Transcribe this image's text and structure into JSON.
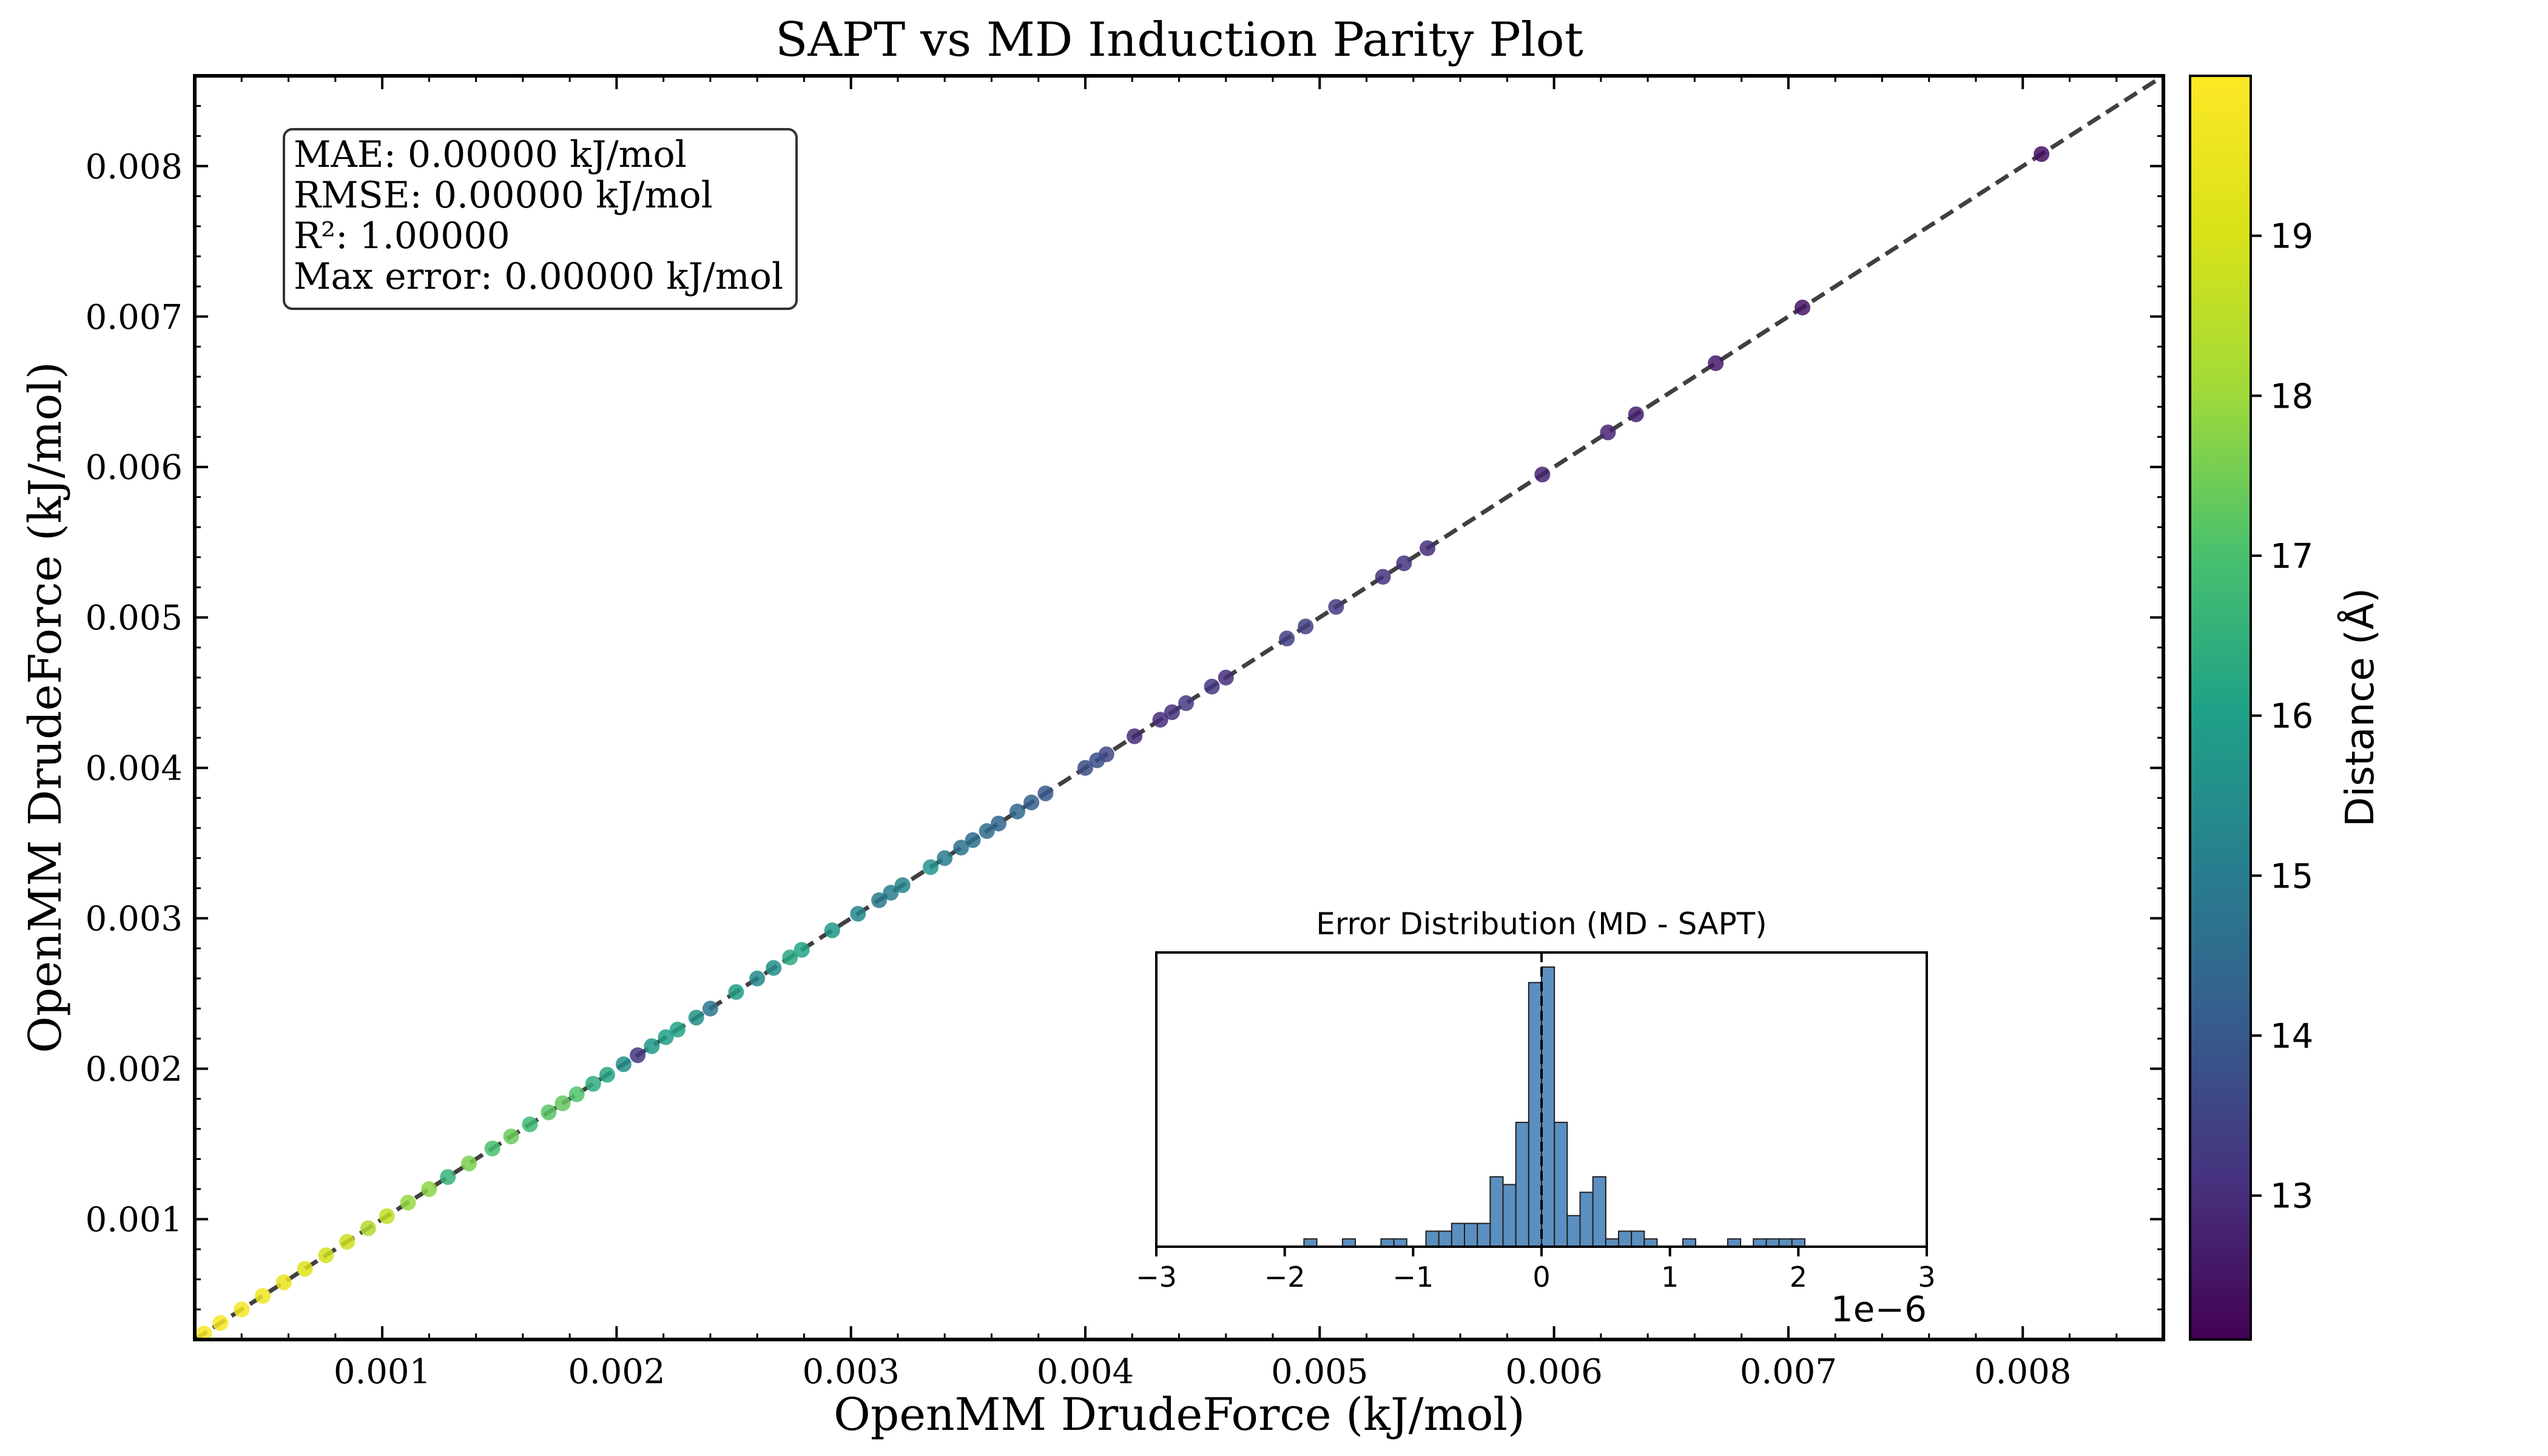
{
  "chart_data": [
    {
      "type": "scatter",
      "title": "SAPT vs MD Induction Parity Plot",
      "xlabel": "OpenMM DrudeForce (kJ/mol)",
      "ylabel": "OpenMM DrudeForce (kJ/mol)",
      "xlim": [
        0.0002,
        0.0086
      ],
      "ylim": [
        0.0002,
        0.0086
      ],
      "xticks": [
        0.001,
        0.002,
        0.003,
        0.004,
        0.005,
        0.006,
        0.007,
        0.008
      ],
      "yticks": [
        0.001,
        0.002,
        0.003,
        0.004,
        0.005,
        0.006,
        0.007,
        0.008
      ],
      "xtick_labels": [
        "0.001",
        "0.002",
        "0.003",
        "0.004",
        "0.005",
        "0.006",
        "0.007",
        "0.008"
      ],
      "ytick_labels": [
        "0.001",
        "0.002",
        "0.003",
        "0.004",
        "0.005",
        "0.006",
        "0.007",
        "0.008"
      ],
      "grid": false,
      "reference_line": "y = x (dashed)",
      "stats_box": {
        "mae": "MAE: 0.00000 kJ/mol",
        "rmse": "RMSE: 0.00000 kJ/mol",
        "r2": "R²: 1.00000",
        "max_error": "Max error: 0.00000 kJ/mol"
      },
      "colorbar": {
        "label": "Distance (Å)",
        "range": [
          12.1,
          20.0
        ],
        "ticks": [
          13,
          14,
          15,
          16,
          17,
          18,
          19
        ],
        "tick_labels": [
          "13",
          "14",
          "15",
          "16",
          "17",
          "18",
          "19"
        ],
        "colormap": "viridis"
      },
      "points": [
        {
          "x": 0.00808,
          "y": 0.00808,
          "d": 12.4
        },
        {
          "x": 0.00706,
          "y": 0.00706,
          "d": 12.5
        },
        {
          "x": 0.00669,
          "y": 0.00669,
          "d": 12.6
        },
        {
          "x": 0.00635,
          "y": 0.00635,
          "d": 12.7
        },
        {
          "x": 0.00623,
          "y": 0.00623,
          "d": 12.8
        },
        {
          "x": 0.00595,
          "y": 0.00595,
          "d": 12.8
        },
        {
          "x": 0.00546,
          "y": 0.00546,
          "d": 13.0
        },
        {
          "x": 0.00536,
          "y": 0.00536,
          "d": 13.1
        },
        {
          "x": 0.00527,
          "y": 0.00527,
          "d": 13.1
        },
        {
          "x": 0.00507,
          "y": 0.00507,
          "d": 13.3
        },
        {
          "x": 0.00494,
          "y": 0.00494,
          "d": 13.4
        },
        {
          "x": 0.00486,
          "y": 0.00486,
          "d": 13.4
        },
        {
          "x": 0.0046,
          "y": 0.0046,
          "d": 13.0
        },
        {
          "x": 0.00454,
          "y": 0.00454,
          "d": 13.2
        },
        {
          "x": 0.00443,
          "y": 0.00443,
          "d": 13.3
        },
        {
          "x": 0.00437,
          "y": 0.00437,
          "d": 13.1
        },
        {
          "x": 0.00432,
          "y": 0.00432,
          "d": 13.0
        },
        {
          "x": 0.00421,
          "y": 0.00421,
          "d": 12.9
        },
        {
          "x": 0.00409,
          "y": 0.00409,
          "d": 13.6
        },
        {
          "x": 0.00405,
          "y": 0.00405,
          "d": 13.8
        },
        {
          "x": 0.004,
          "y": 0.004,
          "d": 13.7
        },
        {
          "x": 0.00383,
          "y": 0.00383,
          "d": 14.0
        },
        {
          "x": 0.00377,
          "y": 0.00377,
          "d": 14.2
        },
        {
          "x": 0.00371,
          "y": 0.00371,
          "d": 14.4
        },
        {
          "x": 0.00363,
          "y": 0.00363,
          "d": 14.3
        },
        {
          "x": 0.00358,
          "y": 0.00358,
          "d": 14.5
        },
        {
          "x": 0.00352,
          "y": 0.00352,
          "d": 14.6
        },
        {
          "x": 0.00347,
          "y": 0.00347,
          "d": 14.7
        },
        {
          "x": 0.0034,
          "y": 0.0034,
          "d": 15.0
        },
        {
          "x": 0.00334,
          "y": 0.00334,
          "d": 15.7
        },
        {
          "x": 0.00322,
          "y": 0.00322,
          "d": 15.2
        },
        {
          "x": 0.00317,
          "y": 0.00317,
          "d": 15.0
        },
        {
          "x": 0.00312,
          "y": 0.00312,
          "d": 14.9
        },
        {
          "x": 0.00303,
          "y": 0.00303,
          "d": 15.3
        },
        {
          "x": 0.00292,
          "y": 0.00292,
          "d": 15.8
        },
        {
          "x": 0.00279,
          "y": 0.00279,
          "d": 16.1
        },
        {
          "x": 0.00274,
          "y": 0.00274,
          "d": 16.3
        },
        {
          "x": 0.00267,
          "y": 0.00267,
          "d": 15.5
        },
        {
          "x": 0.0026,
          "y": 0.0026,
          "d": 15.3
        },
        {
          "x": 0.00251,
          "y": 0.00251,
          "d": 15.9
        },
        {
          "x": 0.0024,
          "y": 0.0024,
          "d": 14.8
        },
        {
          "x": 0.00234,
          "y": 0.00234,
          "d": 15.6
        },
        {
          "x": 0.00226,
          "y": 0.00226,
          "d": 16.1
        },
        {
          "x": 0.00221,
          "y": 0.00221,
          "d": 16.0
        },
        {
          "x": 0.00215,
          "y": 0.00215,
          "d": 15.8
        },
        {
          "x": 0.00209,
          "y": 0.00209,
          "d": 13.2
        },
        {
          "x": 0.00203,
          "y": 0.00203,
          "d": 15.5
        },
        {
          "x": 0.00196,
          "y": 0.00196,
          "d": 16.2
        },
        {
          "x": 0.0019,
          "y": 0.0019,
          "d": 16.4
        },
        {
          "x": 0.00183,
          "y": 0.00183,
          "d": 17.1
        },
        {
          "x": 0.00177,
          "y": 0.00177,
          "d": 17.3
        },
        {
          "x": 0.00171,
          "y": 0.00171,
          "d": 17.2
        },
        {
          "x": 0.00163,
          "y": 0.00163,
          "d": 16.8
        },
        {
          "x": 0.00155,
          "y": 0.00155,
          "d": 17.4
        },
        {
          "x": 0.00147,
          "y": 0.00147,
          "d": 17.0
        },
        {
          "x": 0.00137,
          "y": 0.00137,
          "d": 17.6
        },
        {
          "x": 0.00128,
          "y": 0.00128,
          "d": 16.6
        },
        {
          "x": 0.0012,
          "y": 0.0012,
          "d": 17.8
        },
        {
          "x": 0.00111,
          "y": 0.00111,
          "d": 17.9
        },
        {
          "x": 0.00102,
          "y": 0.00102,
          "d": 18.6
        },
        {
          "x": 0.00094,
          "y": 0.00094,
          "d": 18.3
        },
        {
          "x": 0.00085,
          "y": 0.00085,
          "d": 18.8
        },
        {
          "x": 0.00076,
          "y": 0.00076,
          "d": 18.9
        },
        {
          "x": 0.00067,
          "y": 0.00067,
          "d": 19.2
        },
        {
          "x": 0.00058,
          "y": 0.00058,
          "d": 19.4
        },
        {
          "x": 0.00049,
          "y": 0.00049,
          "d": 19.6
        },
        {
          "x": 0.0004,
          "y": 0.0004,
          "d": 19.8
        },
        {
          "x": 0.00031,
          "y": 0.00031,
          "d": 19.9
        },
        {
          "x": 0.00024,
          "y": 0.00024,
          "d": 19.95
        }
      ]
    },
    {
      "type": "bar",
      "title": "Error Distribution (MD - SAPT)",
      "xlim": [
        -3,
        3
      ],
      "xticks": [
        -3,
        -2,
        -1,
        0,
        1,
        2,
        3
      ],
      "xtick_labels": [
        "−3",
        "−2",
        "−1",
        "0",
        "1",
        "2",
        "3"
      ],
      "x_offset_label": "1e−6",
      "yticks_visible": false,
      "bar_color": "#5b8fbf",
      "reference_line": "x = 0 (dashed)",
      "bins": [
        {
          "x": -1.8,
          "count": 1
        },
        {
          "x": -1.5,
          "count": 1
        },
        {
          "x": -1.2,
          "count": 1
        },
        {
          "x": -1.1,
          "count": 1
        },
        {
          "x": -0.85,
          "count": 2
        },
        {
          "x": -0.75,
          "count": 2
        },
        {
          "x": -0.65,
          "count": 3
        },
        {
          "x": -0.55,
          "count": 3
        },
        {
          "x": -0.45,
          "count": 3
        },
        {
          "x": -0.35,
          "count": 9
        },
        {
          "x": -0.25,
          "count": 8
        },
        {
          "x": -0.15,
          "count": 16
        },
        {
          "x": -0.05,
          "count": 34
        },
        {
          "x": 0.05,
          "count": 36
        },
        {
          "x": 0.15,
          "count": 16
        },
        {
          "x": 0.25,
          "count": 4
        },
        {
          "x": 0.35,
          "count": 7
        },
        {
          "x": 0.45,
          "count": 9
        },
        {
          "x": 0.55,
          "count": 1
        },
        {
          "x": 0.65,
          "count": 2
        },
        {
          "x": 0.75,
          "count": 2
        },
        {
          "x": 0.85,
          "count": 1
        },
        {
          "x": 1.15,
          "count": 1
        },
        {
          "x": 1.5,
          "count": 1
        },
        {
          "x": 1.7,
          "count": 1
        },
        {
          "x": 1.8,
          "count": 1
        },
        {
          "x": 1.9,
          "count": 1
        },
        {
          "x": 2.0,
          "count": 1
        }
      ]
    }
  ]
}
